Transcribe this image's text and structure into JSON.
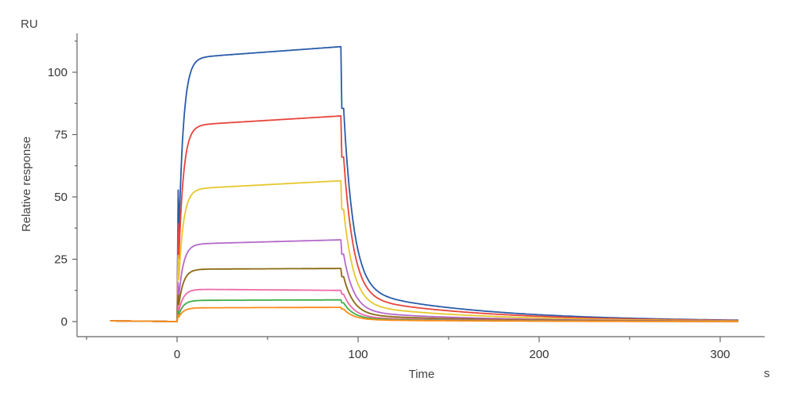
{
  "chart_data": {
    "type": "line",
    "title": "",
    "xlabel": "Time",
    "ylabel": "Relative response",
    "x_unit": "s",
    "y_unit": "RU",
    "xlim": [
      -50,
      320
    ],
    "ylim": [
      -6,
      116
    ],
    "x_ticks": [
      0,
      100,
      200,
      300
    ],
    "y_ticks": [
      0,
      25,
      50,
      75,
      100
    ],
    "x_minor_ticks": [
      -50,
      50,
      150,
      250
    ],
    "y_minor_ticks": [
      12.5,
      37.5,
      62.5,
      87.5,
      112.5
    ],
    "grid": false,
    "legend": "none",
    "x_start": -37,
    "injection_start": 0,
    "injection_end": 91,
    "x_end": 310,
    "series": [
      {
        "color": "#2a5caa",
        "plateau_start": 105.5,
        "plateau_end": 110.3,
        "post_step": 85.5
      },
      {
        "color": "#e8453c",
        "plateau_start": 78.5,
        "plateau_end": 82.5,
        "post_step": 66
      },
      {
        "color": "#e6c82e",
        "plateau_start": 53,
        "plateau_end": 56.5,
        "post_step": 45
      },
      {
        "color": "#b56ac9",
        "plateau_start": 31,
        "plateau_end": 32.8,
        "post_step": 27
      },
      {
        "color": "#8a6a12",
        "plateau_start": 21,
        "plateau_end": 21.3,
        "post_step": 18
      },
      {
        "color": "#f06aa8",
        "plateau_start": 13,
        "plateau_end": 12.5,
        "post_step": 11
      },
      {
        "color": "#3fae4a",
        "plateau_start": 8.5,
        "plateau_end": 8.7,
        "post_step": 7.5
      },
      {
        "color": "#ff8c1a",
        "plateau_start": 5.5,
        "plateau_end": 5.7,
        "post_step": 5
      }
    ]
  }
}
